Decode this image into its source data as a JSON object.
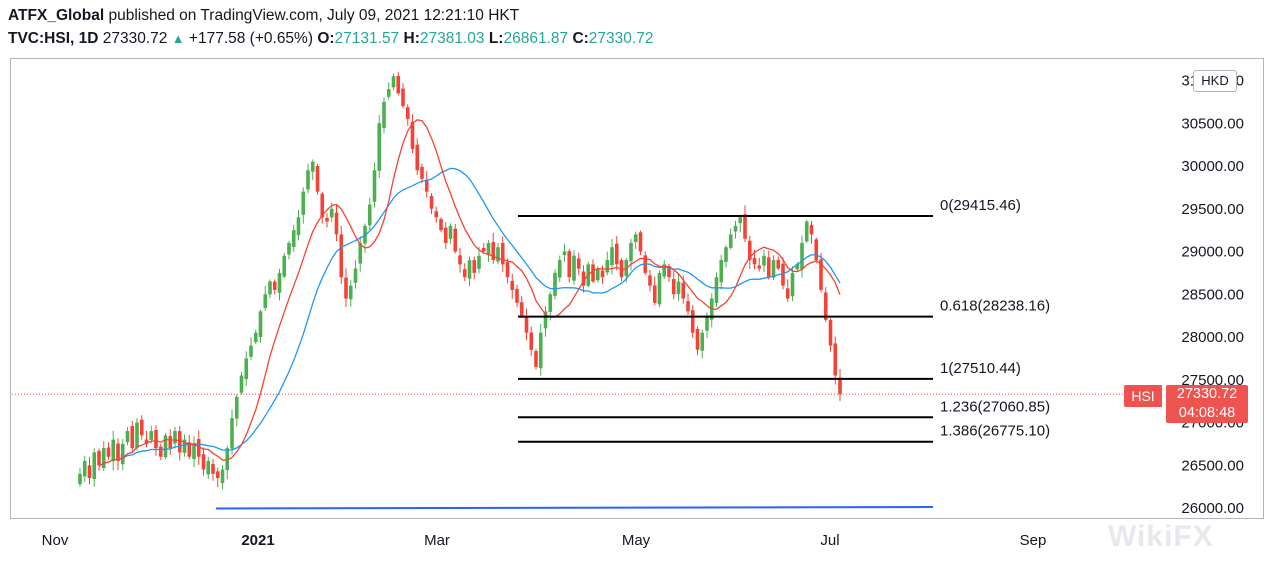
{
  "header": {
    "publisher": "ATFX_Global",
    "published_text": "published on TradingView.com, July 09, 2021 12:21:10 HKT",
    "symbol": "TVC:HSI, 1D",
    "last": "27330.72",
    "change": "+177.58 (+0.65%)",
    "o_label": "O:",
    "o_value": "27131.57",
    "h_label": "H:",
    "h_value": "27381.03",
    "l_label": "L:",
    "l_value": "26861.87",
    "c_label": "C:",
    "c_value": "27330.72"
  },
  "currency": "HKD",
  "price_tag": {
    "symbol": "HSI",
    "price": "27330.72",
    "countdown": "04:08:48"
  },
  "watermark": "WikiFX",
  "chart_data": {
    "type": "candlestick",
    "symbol": "TVC:HSI",
    "interval": "1D",
    "y_ticks": [
      "31000.00",
      "30500.00",
      "30000.00",
      "29500.00",
      "29000.00",
      "28500.00",
      "28000.00",
      "27500.00",
      "27000.00",
      "26500.00",
      "26000.00"
    ],
    "ylim": [
      25950,
      31200
    ],
    "x_ticks": [
      "Nov",
      "2021",
      "Mar",
      "May",
      "Jul",
      "Sep"
    ],
    "x_tick_bold": [
      false,
      true,
      false,
      false,
      false,
      false
    ],
    "fib_levels": [
      {
        "label": "0(29415.46)",
        "value": 29415.46
      },
      {
        "label": "0.618(28238.16)",
        "value": 28238.16
      },
      {
        "label": "1(27510.44)",
        "value": 27510.44
      },
      {
        "label": "1.236(27060.85)",
        "value": 27060.85
      },
      {
        "label": "1.386(26775.10)",
        "value": 26775.1
      }
    ],
    "support_line": {
      "value": 26000,
      "color": "#2962ff"
    },
    "current_price": 27330.72,
    "colors": {
      "up": "#4caf50",
      "down": "#f44336",
      "ma_fast": "#f44336",
      "ma_slow": "#2196f3"
    },
    "closes": [
      26400,
      26550,
      26350,
      26650,
      26500,
      26700,
      26600,
      26800,
      26550,
      26750,
      26900,
      26700,
      27000,
      26850,
      26750,
      26900,
      26700,
      26600,
      26850,
      26700,
      26900,
      26650,
      26800,
      26600,
      26750,
      26600,
      26450,
      26550,
      26400,
      26350,
      26450,
      26700,
      27050,
      27300,
      27550,
      27750,
      27900,
      28050,
      28300,
      28500,
      28650,
      28550,
      28750,
      28950,
      29100,
      29250,
      29400,
      29700,
      29950,
      30050,
      29700,
      29400,
      29350,
      29500,
      29200,
      28700,
      28450,
      28600,
      28800,
      29100,
      29300,
      29550,
      29950,
      30500,
      30750,
      30900,
      31050,
      30850,
      30700,
      30550,
      30200,
      29950,
      29850,
      29700,
      29500,
      29400,
      29250,
      29100,
      29300,
      29000,
      28850,
      28700,
      28900,
      28750,
      28950,
      29000,
      29100,
      28900,
      29050,
      28850,
      28700,
      28550,
      28400,
      28250,
      28050,
      27850,
      27650,
      28050,
      28300,
      28500,
      28750,
      28900,
      29000,
      28700,
      28950,
      28800,
      28600,
      28850,
      28650,
      28800,
      28700,
      28900,
      29050,
      28850,
      28700,
      28900,
      29100,
      29200,
      29000,
      28750,
      28600,
      28400,
      28750,
      28850,
      28700,
      28500,
      28650,
      28450,
      28300,
      28050,
      27850,
      28050,
      28250,
      28450,
      28700,
      28900,
      29050,
      29200,
      29300,
      29400,
      29150,
      28900,
      28850,
      28800,
      28950,
      28700,
      28900,
      28800,
      28600,
      28450,
      28750,
      28850,
      29100,
      29350,
      29200,
      28900,
      28550,
      28200,
      27900,
      27550,
      27330
    ]
  }
}
